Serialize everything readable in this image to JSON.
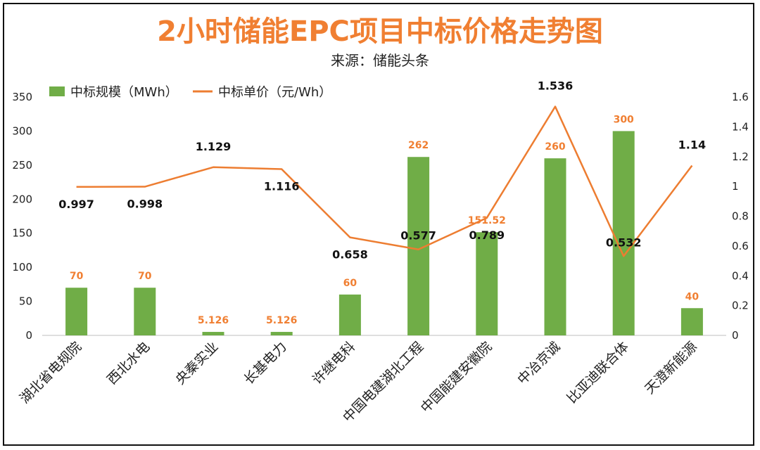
{
  "chart_data": {
    "type": "bar",
    "title": "2小时储能EPC项目中标价格走势图",
    "subtitle": "来源：储能头条",
    "categories": [
      "湖北省电规院",
      "西北水电",
      "央秦实业",
      "长基电力",
      "许继电科",
      "中国电建湖北工程",
      "中国能建安徽院",
      "中冶京诚",
      "比亚迪联合体",
      "天澄新能源"
    ],
    "series": [
      {
        "name": "中标规模（MWh）",
        "type": "bar",
        "axis": "left",
        "color": "#70AD47",
        "values": [
          70,
          70,
          5.126,
          5.126,
          60,
          262,
          151.52,
          260,
          300,
          40
        ],
        "labels": [
          "70",
          "70",
          "5.126",
          "5.126",
          "60",
          "262",
          "151.52",
          "260",
          "300",
          "40"
        ]
      },
      {
        "name": "中标单价（元/Wh）",
        "type": "line",
        "axis": "right",
        "color": "#ED7D31",
        "values": [
          0.997,
          0.998,
          1.129,
          1.116,
          0.658,
          0.577,
          0.789,
          1.536,
          0.532,
          1.14
        ],
        "labels": [
          "0.997",
          "0.998",
          "1.129",
          "1.116",
          "0.658",
          "0.577",
          "0.789",
          "1.536",
          "0.532",
          "1.14"
        ]
      }
    ],
    "y_left": {
      "min": 0,
      "max": 350,
      "ticks": [
        "0",
        "50",
        "100",
        "150",
        "200",
        "250",
        "300",
        "350"
      ]
    },
    "y_right": {
      "min": 0,
      "max": 1.6,
      "ticks": [
        "0",
        "0.2",
        "0.4",
        "0.6",
        "0.8",
        "1",
        "1.2",
        "1.4",
        "1.6"
      ]
    },
    "grid": false,
    "legend_position": "top-left"
  }
}
